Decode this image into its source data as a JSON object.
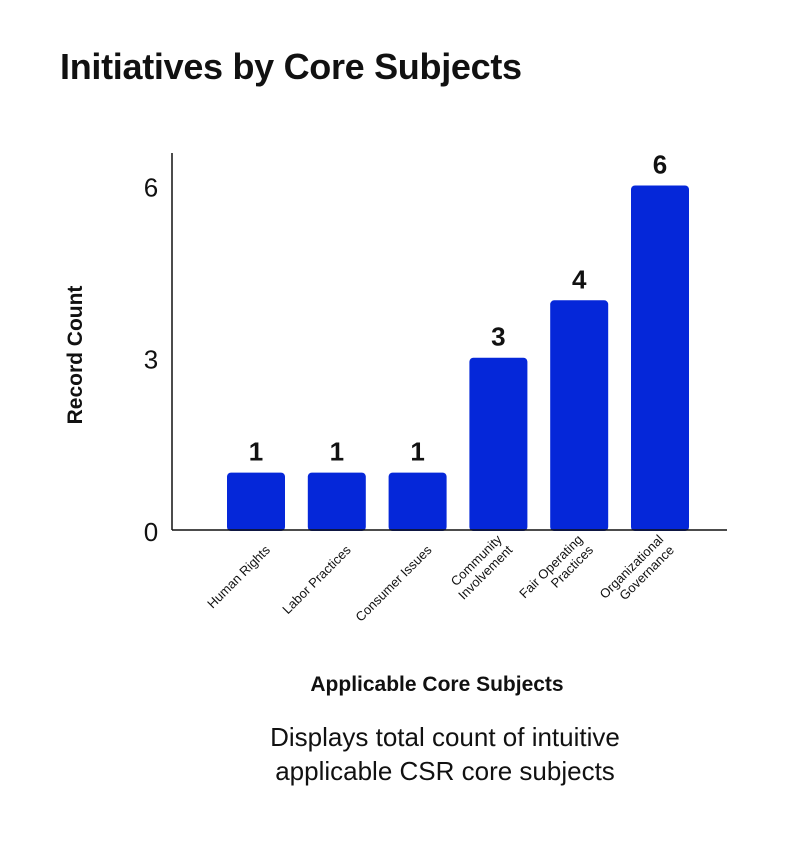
{
  "chart_data": {
    "type": "bar",
    "title": "Initiatives by Core Subjects",
    "xlabel": "Applicable Core Subjects",
    "ylabel": "Record Count",
    "categories": [
      [
        "Human Rights"
      ],
      [
        "Labor Practices"
      ],
      [
        "Consumer Issues"
      ],
      [
        "Community",
        "Involvement"
      ],
      [
        "Fair Operating",
        "Practices"
      ],
      [
        "Organizational",
        "Governance"
      ]
    ],
    "values": [
      1,
      1,
      1,
      3,
      4,
      6
    ],
    "yticks": [
      0,
      3,
      6
    ],
    "ylim": [
      0,
      6.6
    ],
    "bar_color": "#0527d9",
    "grid": false,
    "legend": "none",
    "caption": [
      "Displays total count of intuitive",
      "applicable CSR core subjects"
    ]
  }
}
